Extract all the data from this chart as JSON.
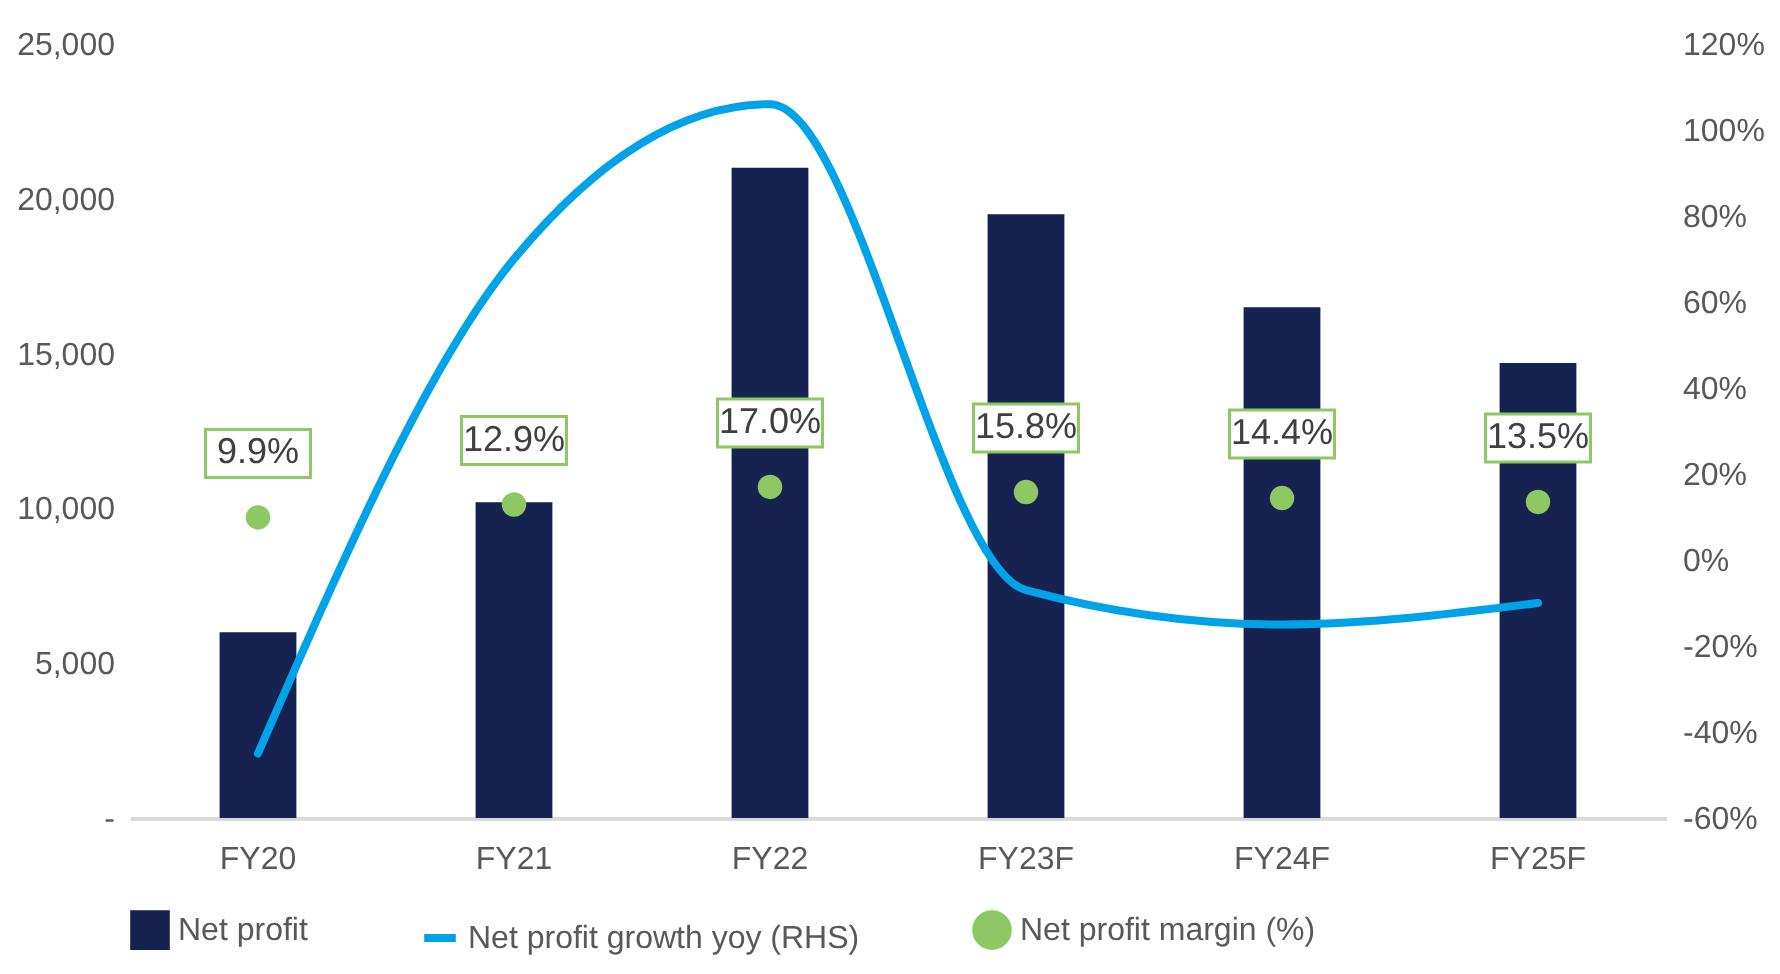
{
  "chart_data": {
    "type": "bar",
    "categories": [
      "FY20",
      "FY21",
      "FY22",
      "FY23F",
      "FY24F",
      "FY25F"
    ],
    "series": [
      {
        "name": "Net profit",
        "color": "#16224f",
        "values": [
          6000,
          10200,
          21000,
          19500,
          16500,
          14700
        ]
      },
      {
        "name": "Net profit growth yoy (RHS)",
        "type": "line",
        "axis": "y2",
        "color": "#00a2e8",
        "line_style": "solid",
        "marker": "none",
        "values": [
          -45,
          70,
          106,
          -7,
          -15,
          -10
        ]
      },
      {
        "name": "Net profit margin (%)",
        "type": "scatter",
        "axis": "y2",
        "color": "#8dc862",
        "marker": "circle",
        "values": [
          9.9,
          12.9,
          17.0,
          15.8,
          14.4,
          13.5
        ],
        "value_labels": [
          "9.9%",
          "12.9%",
          "17.0%",
          "15.8%",
          "14.4%",
          "13.5%"
        ]
      }
    ],
    "ylim": [
      0,
      25000
    ],
    "yticks": [
      {
        "value": 0,
        "label": "-"
      },
      {
        "value": 5000,
        "label": "5,000"
      },
      {
        "value": 10000,
        "label": "10,000"
      },
      {
        "value": 15000,
        "label": "15,000"
      },
      {
        "value": 20000,
        "label": "20,000"
      },
      {
        "value": 25000,
        "label": "25,000"
      }
    ],
    "y2lim": [
      -60,
      120
    ],
    "y2ticks": [
      {
        "value": -60,
        "label": "-60%"
      },
      {
        "value": -40,
        "label": "-40%"
      },
      {
        "value": -20,
        "label": "-20%"
      },
      {
        "value": 0,
        "label": "0%"
      },
      {
        "value": 20,
        "label": "20%"
      },
      {
        "value": 40,
        "label": "40%"
      },
      {
        "value": 60,
        "label": "60%"
      },
      {
        "value": 80,
        "label": "80%"
      },
      {
        "value": 100,
        "label": "100%"
      },
      {
        "value": 120,
        "label": "120%"
      }
    ],
    "grid": false,
    "legend": "bottom"
  }
}
